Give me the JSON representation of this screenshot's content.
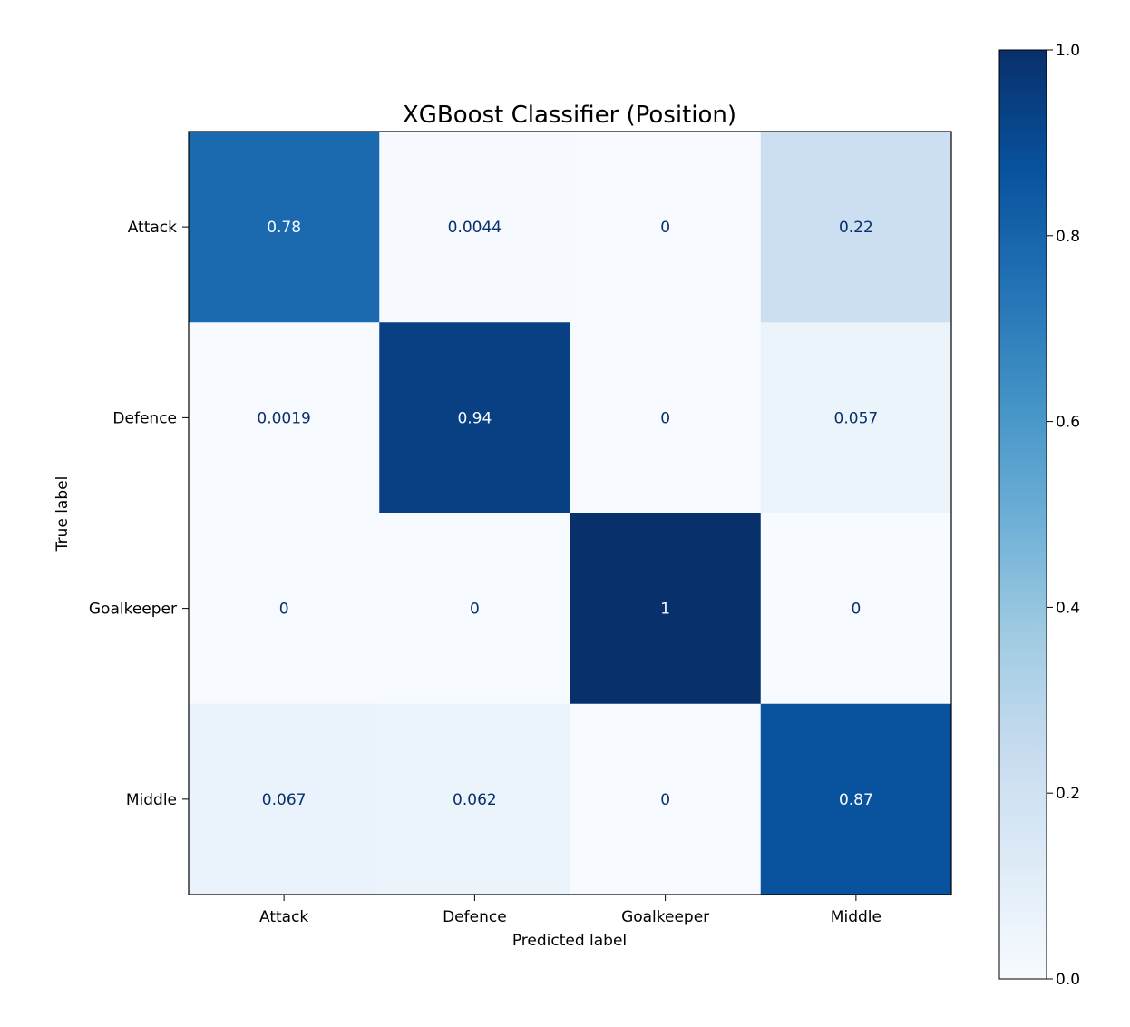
{
  "chart_data": {
    "type": "heatmap",
    "title": "XGBoost Classifier (Position)",
    "xlabel": "Predicted label",
    "ylabel": "True label",
    "x_categories": [
      "Attack",
      "Defence",
      "Goalkeeper",
      "Middle"
    ],
    "y_categories": [
      "Attack",
      "Defence",
      "Goalkeeper",
      "Middle"
    ],
    "values": [
      [
        0.78,
        0.0044,
        0,
        0.22
      ],
      [
        0.0019,
        0.94,
        0,
        0.057
      ],
      [
        0,
        0,
        1,
        0
      ],
      [
        0.067,
        0.062,
        0,
        0.87
      ]
    ],
    "value_labels": [
      [
        "0.78",
        "0.0044",
        "0",
        "0.22"
      ],
      [
        "0.0019",
        "0.94",
        "0",
        "0.057"
      ],
      [
        "0",
        "0",
        "1",
        "0"
      ],
      [
        "0.067",
        "0.062",
        "0",
        "0.87"
      ]
    ],
    "colormap": "Blues",
    "colorbar": {
      "range": [
        0.0,
        1.0
      ],
      "tick_labels": [
        "0.0",
        "0.2",
        "0.4",
        "0.6",
        "0.8",
        "1.0"
      ]
    },
    "grid": false
  }
}
